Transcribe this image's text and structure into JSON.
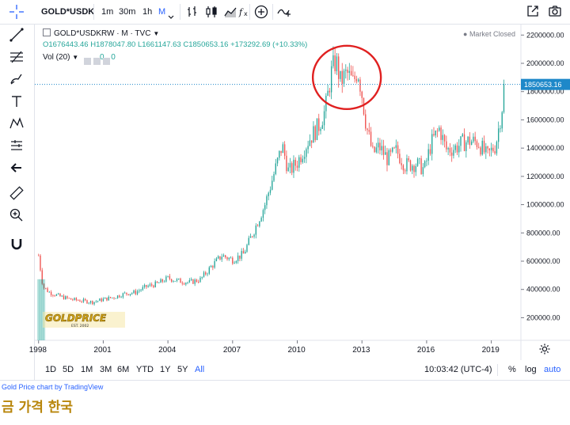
{
  "toolbar": {
    "symbol": "GOLD*USDK",
    "intervals": [
      "1m",
      "30m",
      "1h",
      "M"
    ],
    "active_interval": "M"
  },
  "legend": {
    "title": "GOLD*USDKRW · M · TVC",
    "open": "O1676443.46",
    "high": "H1878047.80",
    "low": "L1661147.63",
    "close": "C1850653.16",
    "change": "+173292.69 (+10.33%)",
    "market_status": "Market Closed",
    "volume_label": "Vol (20)",
    "volume_values": [
      "0",
      "0"
    ]
  },
  "bottombar": {
    "ranges": [
      "1D",
      "5D",
      "1M",
      "3M",
      "6M",
      "YTD",
      "1Y",
      "5Y",
      "All"
    ],
    "active_range": "All",
    "time": "10:03:42 (UTC-4)",
    "percent": "%",
    "log": "log",
    "auto": "auto"
  },
  "credit": "Gold Price chart by TradingView",
  "caption": "금 가격 한국",
  "logo_text": "GOLDPRICE",
  "logo_sub": "EST. 2002",
  "colors": {
    "up": "#26a69a",
    "down": "#ef5350",
    "accent": "#2962ff",
    "circle": "#e02020",
    "last_price": "#1e88c9"
  },
  "chart_data": {
    "type": "candlestick",
    "symbol": "GOLD*USDKRW",
    "interval": "monthly",
    "last_price": 1850653.16,
    "last_price_label": "1850653.16",
    "y_ticks": [
      200000,
      400000,
      600000,
      800000,
      1000000,
      1200000,
      1400000,
      1600000,
      1800000,
      2000000,
      2200000
    ],
    "y_tick_labels": [
      "200000.00",
      "400000.00",
      "600000.00",
      "800000.00",
      "1000000.00",
      "1200000.00",
      "1400000.00",
      "1600000.00",
      "1800000.00",
      "2000000.00",
      "2200000.00"
    ],
    "ylim": [
      40000,
      2280000
    ],
    "xlim": [
      1997.9,
      2020.3
    ],
    "x_ticks": [
      1998,
      2001,
      2004,
      2007,
      2010,
      2013,
      2016,
      2019
    ],
    "x_tick_labels": [
      "1998",
      "2001",
      "2004",
      "2007",
      "2010",
      "2013",
      "2016",
      "2019"
    ],
    "annotation": {
      "type": "circle",
      "center_year": 2012.3,
      "center_value": 1900000
    },
    "anchors": [
      [
        1998.0,
        640000
      ],
      [
        1998.2,
        420000
      ],
      [
        1998.5,
        380000
      ],
      [
        1999.0,
        350000
      ],
      [
        1999.5,
        330000
      ],
      [
        2000.0,
        320000
      ],
      [
        2000.5,
        310000
      ],
      [
        2001.0,
        330000
      ],
      [
        2001.5,
        345000
      ],
      [
        2002.0,
        370000
      ],
      [
        2002.5,
        380000
      ],
      [
        2003.0,
        420000
      ],
      [
        2003.5,
        440000
      ],
      [
        2004.0,
        480000
      ],
      [
        2004.5,
        460000
      ],
      [
        2005.0,
        450000
      ],
      [
        2005.5,
        470000
      ],
      [
        2006.0,
        560000
      ],
      [
        2006.5,
        640000
      ],
      [
        2007.0,
        610000
      ],
      [
        2007.5,
        650000
      ],
      [
        2008.0,
        820000
      ],
      [
        2008.5,
        1000000
      ],
      [
        2009.0,
        1260000
      ],
      [
        2009.3,
        1420000
      ],
      [
        2009.6,
        1230000
      ],
      [
        2010.0,
        1300000
      ],
      [
        2010.5,
        1450000
      ],
      [
        2011.0,
        1560000
      ],
      [
        2011.3,
        1670000
      ],
      [
        2011.6,
        1950000
      ],
      [
        2011.8,
        2020000
      ],
      [
        2012.0,
        1870000
      ],
      [
        2012.3,
        1930000
      ],
      [
        2012.6,
        1860000
      ],
      [
        2012.8,
        1960000
      ],
      [
        2013.0,
        1780000
      ],
      [
        2013.2,
        1560000
      ],
      [
        2013.5,
        1360000
      ],
      [
        2013.8,
        1410000
      ],
      [
        2014.2,
        1320000
      ],
      [
        2014.6,
        1380000
      ],
      [
        2015.0,
        1280000
      ],
      [
        2015.5,
        1290000
      ],
      [
        2015.9,
        1250000
      ],
      [
        2016.2,
        1430000
      ],
      [
        2016.6,
        1540000
      ],
      [
        2016.9,
        1390000
      ],
      [
        2017.3,
        1400000
      ],
      [
        2017.7,
        1440000
      ],
      [
        2018.0,
        1450000
      ],
      [
        2018.4,
        1440000
      ],
      [
        2018.8,
        1340000
      ],
      [
        2019.0,
        1380000
      ],
      [
        2019.2,
        1420000
      ],
      [
        2019.45,
        1640000
      ],
      [
        2019.65,
        1850653
      ]
    ]
  }
}
